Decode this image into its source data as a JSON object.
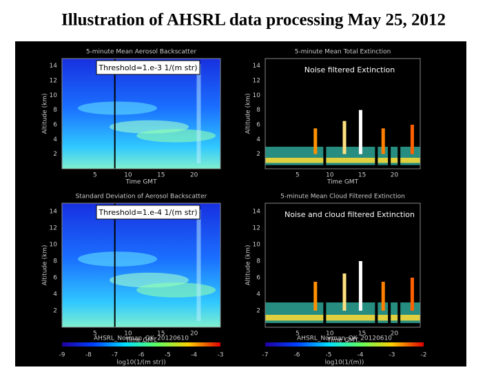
{
  "title": "Illustration of AHSRL data processing May 25, 2012",
  "panels": [
    {
      "title": "5-minute Mean Aerosol Backscatter",
      "overlay": "Threshold=1.e-3 1/(m str)",
      "y_label": "Altitude (km)",
      "y_ticks": [
        14,
        12,
        10,
        8,
        6,
        4,
        2
      ],
      "x_ticks": [
        5,
        10,
        15,
        20
      ],
      "x_label": "Time GMT"
    },
    {
      "title": "5-minute Mean Total Extinction",
      "overlay": "Noise filtered Extinction",
      "y_label": "Altitude (km)",
      "y_ticks": [
        14,
        12,
        10,
        8,
        6,
        4,
        2
      ],
      "x_ticks": [
        5,
        10,
        15,
        20
      ],
      "x_label": "Time GMT"
    },
    {
      "title": "Standard Deviation of Aerosol Backscatter",
      "overlay": "Threshold=1.e-4 1/(m str)",
      "y_label": "Altitude (km)",
      "y_ticks": [
        14,
        12,
        10,
        8,
        6,
        4,
        2
      ],
      "x_ticks": [
        5,
        10,
        15,
        20
      ],
      "x_label": "Time GMT"
    },
    {
      "title": "5-minute Mean Cloud Filtered Extinction",
      "overlay": "Noise and cloud filtered Extinction",
      "y_label": "Altitude (km)",
      "y_ticks": [
        14,
        12,
        10,
        8,
        6,
        4,
        2
      ],
      "x_ticks": [
        5,
        10,
        15,
        20
      ],
      "x_label": "Time GMT"
    }
  ],
  "colorbars": [
    {
      "caption": "AHSRL_Norman_OK_20120610",
      "ticks": [
        -9,
        -8,
        -7,
        -6,
        -5,
        -4,
        -3
      ],
      "label": "log10(1/(m str))"
    },
    {
      "caption": "AHSRL_Norman_OK_20120610",
      "ticks": [
        -7,
        -6,
        -5,
        -4,
        -3,
        -2
      ],
      "label": "log10(1/(m))"
    }
  ]
}
